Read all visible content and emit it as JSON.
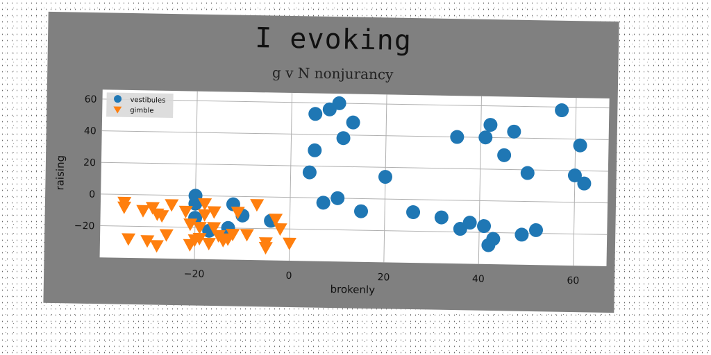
{
  "chart_data": {
    "type": "scatter",
    "title": "I evoking",
    "subtitle": "g v N nonjurancy",
    "xlabel": "brokenly",
    "ylabel": "raising",
    "xlim": [
      -40,
      67
    ],
    "ylim": [
      -40,
      66
    ],
    "xticks": [
      -20,
      0,
      20,
      40,
      60
    ],
    "yticks": [
      -20,
      0,
      20,
      40,
      60
    ],
    "grid": true,
    "legend_position": "top-left",
    "series": [
      {
        "name": "vestibules",
        "marker": "circle",
        "color": "#1f77b4",
        "points": [
          [
            4,
            16
          ],
          [
            5,
            30
          ],
          [
            5,
            53
          ],
          [
            8,
            56
          ],
          [
            10,
            60
          ],
          [
            11,
            38
          ],
          [
            13,
            48
          ],
          [
            7,
            -3
          ],
          [
            10,
            0
          ],
          [
            15,
            -8
          ],
          [
            20,
            14
          ],
          [
            26,
            -8
          ],
          [
            32,
            -11
          ],
          [
            35,
            40
          ],
          [
            36,
            -18
          ],
          [
            38,
            -14
          ],
          [
            41,
            -16
          ],
          [
            41,
            40
          ],
          [
            42,
            -28
          ],
          [
            42,
            48
          ],
          [
            43,
            -24
          ],
          [
            45,
            29
          ],
          [
            47,
            44
          ],
          [
            49,
            -21
          ],
          [
            50,
            18
          ],
          [
            52,
            -18
          ],
          [
            57,
            58
          ],
          [
            60,
            17
          ],
          [
            61,
            36
          ],
          [
            62,
            12
          ],
          [
            -20,
            0
          ],
          [
            -20,
            -5
          ],
          [
            -20,
            -14
          ],
          [
            -17,
            -22
          ],
          [
            -13,
            -20
          ],
          [
            -12,
            -5
          ],
          [
            -10,
            -12
          ],
          [
            -4,
            -15
          ]
        ]
      },
      {
        "name": "gimble",
        "marker": "triangle-down",
        "color": "#ff7f0e",
        "points": [
          [
            -35,
            -5
          ],
          [
            -35,
            -8
          ],
          [
            -34,
            -28
          ],
          [
            -31,
            -10
          ],
          [
            -30,
            -29
          ],
          [
            -29,
            -8
          ],
          [
            -28,
            -12
          ],
          [
            -28,
            -32
          ],
          [
            -27,
            -13
          ],
          [
            -26,
            -25
          ],
          [
            -25,
            -6
          ],
          [
            -22,
            -10
          ],
          [
            -21,
            -18
          ],
          [
            -21,
            -31
          ],
          [
            -20,
            -28
          ],
          [
            -19,
            -20
          ],
          [
            -19,
            -27
          ],
          [
            -18,
            -5
          ],
          [
            -18,
            -12
          ],
          [
            -17,
            -30
          ],
          [
            -16,
            -10
          ],
          [
            -16,
            -20
          ],
          [
            -15,
            -25
          ],
          [
            -14,
            -28
          ],
          [
            -13,
            -27
          ],
          [
            -12,
            -24
          ],
          [
            -11,
            -10
          ],
          [
            -9,
            -24
          ],
          [
            -7,
            -5
          ],
          [
            -5,
            -29
          ],
          [
            -5,
            -32
          ],
          [
            -3,
            -14
          ],
          [
            -2,
            -20
          ],
          [
            0,
            -29
          ]
        ]
      }
    ]
  }
}
